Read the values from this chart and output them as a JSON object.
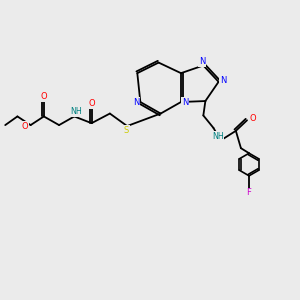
{
  "background_color": "#ebebeb",
  "atom_colors": {
    "O": "#ff0000",
    "N": "#0000ff",
    "S": "#cccc00",
    "F": "#cc00cc",
    "H": "#008080",
    "C": "#000000"
  },
  "figsize": [
    3.0,
    3.0
  ],
  "dpi": 100
}
